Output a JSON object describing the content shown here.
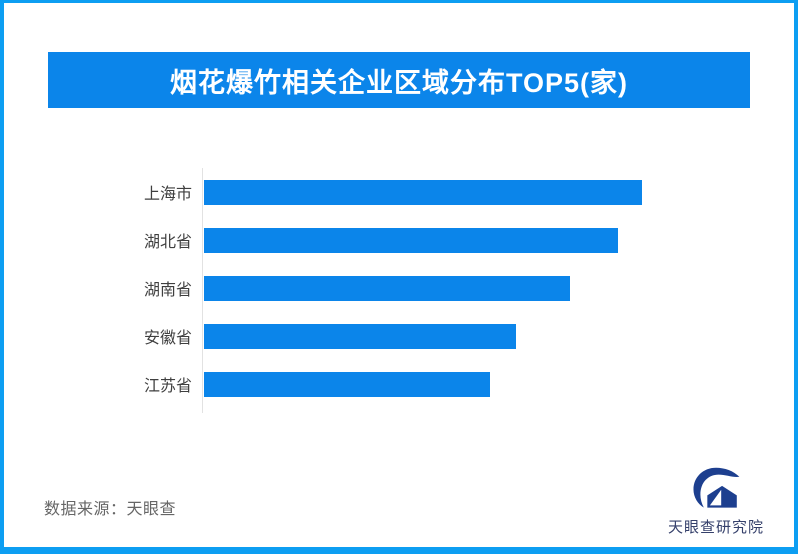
{
  "frame": {
    "border_color": "#0d9ef2",
    "background": "#ffffff"
  },
  "banner": {
    "title": "烟花爆竹相关企业区域分布TOP5(家)",
    "bg_color": "#0b85ea",
    "text_color": "#ffffff"
  },
  "chart_data": {
    "type": "bar",
    "orientation": "horizontal",
    "title": "烟花爆竹相关企业区域分布TOP5(家)",
    "categories": [
      "上海市",
      "湖北省",
      "湖南省",
      "安徽省",
      "江苏省"
    ],
    "values": [
      100,
      94.5,
      83.6,
      71.2,
      65.3
    ],
    "values_note": "bars carry no numeric data labels in the image; values are relative bar lengths as percent of the longest bar",
    "bar_color": "#0b85ea",
    "axis_line_color": "#e2e2e2",
    "label_color": "#3f3f3f",
    "grid": "off",
    "legend": "none",
    "xlabel": "",
    "ylabel": ""
  },
  "footer": {
    "source_text": "数据来源：天眼查",
    "source_color": "#666666",
    "logo_text": "天眼查研究院",
    "logo_color": "#1d3f8f",
    "logo_text_color": "#35406b"
  }
}
